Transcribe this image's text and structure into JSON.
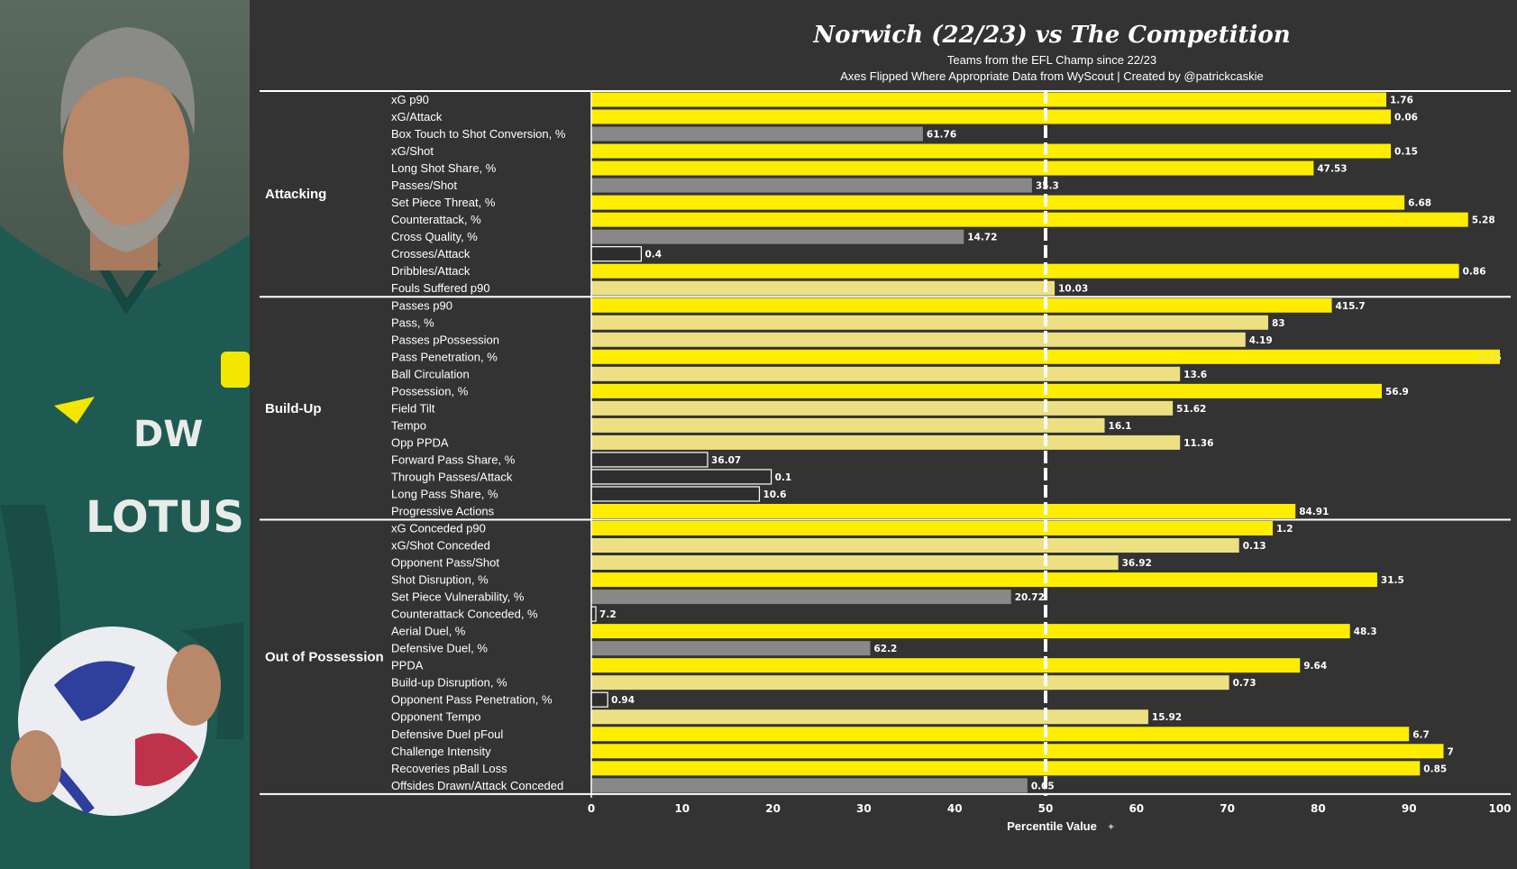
{
  "photo": {
    "shirt_sponsor": "LOTUS",
    "shirt_initials": "DW",
    "colors": {
      "shirt": "#1f5a52",
      "background": "#3d4c44",
      "skin": "#b9876a",
      "hair": "#8a8a86"
    }
  },
  "colors": {
    "bar_top": "#ffed00",
    "bar_mid": "#ece083",
    "bar_low": "#888888",
    "bar_bottom": "#2e2e2e",
    "background": "#333333",
    "text": "#ffffff"
  },
  "chart_data": {
    "type": "bar",
    "orientation": "horizontal",
    "title": "Norwich (22/23) vs The Competition",
    "subtitle": "Teams from the EFL Champ since 22/23",
    "caption": "Axes Flipped Where Appropriate  Data from WyScout | Created by @patrickcaskie",
    "xlabel": "Percentile Value",
    "xlim": [
      0,
      100
    ],
    "xticks": [
      0,
      10,
      20,
      30,
      40,
      50,
      60,
      70,
      80,
      90,
      100
    ],
    "reference_line": 50,
    "groups": [
      {
        "name": "Attacking",
        "metrics": [
          {
            "label": "xG p90",
            "percentile": 87.5,
            "value": "1.76"
          },
          {
            "label": "xG/Attack",
            "percentile": 88,
            "value": "0.06"
          },
          {
            "label": "Box Touch to Shot Conversion, %",
            "percentile": 36.5,
            "value": "61.76"
          },
          {
            "label": "xG/Shot",
            "percentile": 88,
            "value": "0.15"
          },
          {
            "label": "Long Shot Share, %",
            "percentile": 79.5,
            "value": "47.53"
          },
          {
            "label": "Passes/Shot",
            "percentile": 48.5,
            "value": "35.3"
          },
          {
            "label": "Set Piece Threat, %",
            "percentile": 89.5,
            "value": "6.68"
          },
          {
            "label": "Counterattack, %",
            "percentile": 96.5,
            "value": "5.28"
          },
          {
            "label": "Cross Quality, %",
            "percentile": 41,
            "value": "14.72"
          },
          {
            "label": "Crosses/Attack",
            "percentile": 5.5,
            "value": "0.4"
          },
          {
            "label": "Dribbles/Attack",
            "percentile": 95.5,
            "value": "0.86"
          },
          {
            "label": "Fouls Suffered p90",
            "percentile": 51,
            "value": "10.03"
          }
        ]
      },
      {
        "name": "Build-Up",
        "metrics": [
          {
            "label": "Passes p90",
            "percentile": 81.5,
            "value": "415.7"
          },
          {
            "label": "Pass, %",
            "percentile": 74.5,
            "value": "83"
          },
          {
            "label": "Passes pPossession",
            "percentile": 72,
            "value": "4.19"
          },
          {
            "label": "Pass Penetration, %",
            "percentile": 100,
            "value": "1.15"
          },
          {
            "label": "Ball Circulation",
            "percentile": 64.8,
            "value": "13.6"
          },
          {
            "label": "Possession, %",
            "percentile": 87,
            "value": "56.9"
          },
          {
            "label": "Field Tilt",
            "percentile": 64,
            "value": "51.62"
          },
          {
            "label": "Tempo",
            "percentile": 56.5,
            "value": "16.1"
          },
          {
            "label": "Opp PPDA",
            "percentile": 64.8,
            "value": "11.36"
          },
          {
            "label": "Forward Pass Share, %",
            "percentile": 12.8,
            "value": "36.07"
          },
          {
            "label": "Through Passes/Attack",
            "percentile": 19.8,
            "value": "0.1"
          },
          {
            "label": "Long Pass Share, %",
            "percentile": 18.5,
            "value": "10.6"
          },
          {
            "label": "Progressive Actions",
            "percentile": 77.5,
            "value": "84.91"
          }
        ]
      },
      {
        "name": "Out of Possession",
        "metrics": [
          {
            "label": "xG Conceded p90",
            "percentile": 75,
            "value": "1.2"
          },
          {
            "label": "xG/Shot Conceded",
            "percentile": 71.3,
            "value": "0.13"
          },
          {
            "label": "Opponent Pass/Shot",
            "percentile": 58,
            "value": "36.92"
          },
          {
            "label": "Shot Disruption, %",
            "percentile": 86.5,
            "value": "31.5"
          },
          {
            "label": "Set Piece Vulnerability, %",
            "percentile": 46.2,
            "value": "20.72"
          },
          {
            "label": "Counterattack Conceded, %",
            "percentile": 0.5,
            "value": "7.2"
          },
          {
            "label": "Aerial Duel, %",
            "percentile": 83.5,
            "value": "48.3"
          },
          {
            "label": "Defensive Duel, %",
            "percentile": 30.7,
            "value": "62.2"
          },
          {
            "label": "PPDA",
            "percentile": 78,
            "value": "9.64"
          },
          {
            "label": "Build-up Disruption, %",
            "percentile": 70.2,
            "value": "0.73"
          },
          {
            "label": "Opponent Pass Penetration, %",
            "percentile": 1.8,
            "value": "0.94"
          },
          {
            "label": "Opponent Tempo",
            "percentile": 61.3,
            "value": "15.92"
          },
          {
            "label": "Defensive Duel pFoul",
            "percentile": 90,
            "value": "6.7"
          },
          {
            "label": "Challenge Intensity",
            "percentile": 93.8,
            "value": "7"
          },
          {
            "label": "Recoveries pBall Loss",
            "percentile": 91.2,
            "value": "0.85"
          },
          {
            "label": "Offsides Drawn/Attack Conceded",
            "percentile": 48,
            "value": "0.05"
          }
        ]
      }
    ]
  }
}
